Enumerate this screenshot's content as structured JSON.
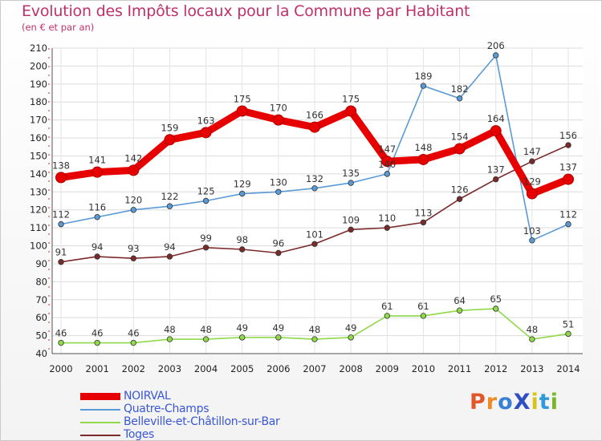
{
  "header": {
    "title": "Evolution des Impôts locaux pour la Commune par Habitant",
    "subtitle": "(en € et par an)"
  },
  "logo": {
    "text": "ProXiti",
    "letter_colors": [
      "#e2562b",
      "#f08a24",
      "#3a7fd6",
      "#2e4fc2",
      "#d8c31e",
      "#2e9ad9",
      "#79b52a"
    ]
  },
  "chart_data": {
    "type": "line",
    "title": "Evolution des Impôts locaux pour la Commune par Habitant",
    "subtitle": "(en € et par an)",
    "xlabel": "",
    "ylabel": "",
    "categories": [
      "2000",
      "2001",
      "2002",
      "2003",
      "2004",
      "2005",
      "2006",
      "2007",
      "2008",
      "2009",
      "2010",
      "2011",
      "2012",
      "2013",
      "2014"
    ],
    "ylim": [
      40,
      210
    ],
    "yticks": [
      40,
      50,
      60,
      70,
      80,
      90,
      100,
      110,
      120,
      130,
      140,
      150,
      160,
      170,
      180,
      190,
      200,
      210
    ],
    "grid": true,
    "legend_position": "bottom-left",
    "series": [
      {
        "name": "NOIRVAL",
        "color": "#e60000",
        "values": [
          138,
          141,
          142,
          159,
          163,
          175,
          170,
          166,
          175,
          147,
          148,
          154,
          164,
          129,
          137
        ]
      },
      {
        "name": "Quatre-Champs",
        "color": "#5b9bd5",
        "values": [
          112,
          116,
          120,
          122,
          125,
          129,
          130,
          132,
          135,
          140,
          189,
          182,
          206,
          103,
          112
        ]
      },
      {
        "name": "Belleville-et-Châtillon-sur-Bar",
        "color": "#8fd94a",
        "values": [
          46,
          46,
          46,
          48,
          48,
          49,
          49,
          48,
          49,
          61,
          61,
          64,
          65,
          48,
          51
        ]
      },
      {
        "name": "Toges",
        "color": "#7b2a2a",
        "values": [
          91,
          94,
          93,
          94,
          99,
          98,
          96,
          101,
          109,
          110,
          113,
          126,
          137,
          147,
          156
        ]
      }
    ]
  }
}
